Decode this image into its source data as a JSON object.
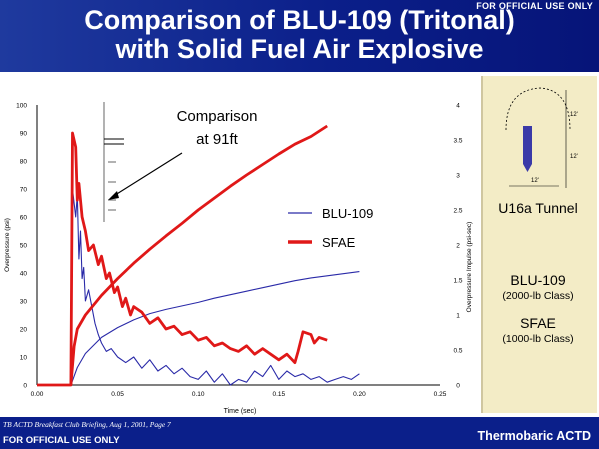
{
  "header": {
    "classification": "FOR OFFICIAL USE ONLY",
    "title_line1": "Comparison of BLU-109 (Tritonal)",
    "title_line2": "with Solid Fuel Air Explosive"
  },
  "footer": {
    "briefing": "TB ACTD Breakfast Club Briefing, Aug 1, 2001, Page 7",
    "classification": "FOR OFFICIAL USE ONLY",
    "brand": "Thermobaric ACTD"
  },
  "side_panel": {
    "tunnel_label": "U16a Tunnel",
    "item1_name": "BLU-109",
    "item1_class": "(2000-lb Class)",
    "item2_name": "SFAE",
    "item2_class": "(1000-lb Class)",
    "diagram_labels": [
      "12'",
      "12'",
      "12'"
    ]
  },
  "colors": {
    "blu109": "#2a2aa8",
    "sfae": "#e01818",
    "background": "#0b1f8a",
    "side_panel": "#f3ecc6"
  },
  "chart_data": {
    "type": "line",
    "annotation": [
      "Comparison",
      "at 91ft"
    ],
    "xlabel": "Time (sec)",
    "ylabel_left": "Overpressure (psi)",
    "ylabel_right": "Overpressure Impulse (psi-sec)",
    "x_ticks": [
      "0.00",
      "0.05",
      "0.10",
      "0.15",
      "0.20",
      "0.25"
    ],
    "y_left_ticks": [
      "0",
      "10",
      "20",
      "30",
      "40",
      "50",
      "60",
      "70",
      "80",
      "90",
      "100"
    ],
    "y_right_ticks": [
      "0",
      "0.5",
      "1",
      "1.5",
      "2",
      "2.5",
      "3",
      "3.5",
      "4"
    ],
    "xlim": [
      0,
      0.25
    ],
    "ylim_left": [
      0,
      100
    ],
    "ylim_right": [
      0,
      4
    ],
    "legend": "center-right",
    "series": [
      {
        "name": "BLU-109",
        "axis": "left",
        "kind": "pressure",
        "x": [
          0.0,
          0.021,
          0.022,
          0.024,
          0.025,
          0.026,
          0.027,
          0.028,
          0.029,
          0.03,
          0.032,
          0.034,
          0.036,
          0.038,
          0.04,
          0.043,
          0.046,
          0.05,
          0.055,
          0.06,
          0.065,
          0.07,
          0.075,
          0.08,
          0.085,
          0.09,
          0.095,
          0.1,
          0.105,
          0.11,
          0.115,
          0.12,
          0.125,
          0.13,
          0.135,
          0.14,
          0.145,
          0.15,
          0.155,
          0.16,
          0.165,
          0.17,
          0.175,
          0.18,
          0.185,
          0.19,
          0.195,
          0.2
        ],
        "y": [
          0,
          0,
          70,
          60,
          68,
          45,
          55,
          38,
          42,
          30,
          34,
          28,
          22,
          18,
          15,
          12,
          13,
          10,
          8,
          10,
          6,
          9,
          5,
          7,
          4,
          6,
          3,
          2,
          5,
          1,
          4,
          0,
          2,
          1,
          5,
          3,
          7,
          2,
          5,
          3,
          4,
          2,
          3,
          1,
          2,
          3,
          2,
          4
        ]
      },
      {
        "name": "BLU-109",
        "axis": "right",
        "kind": "impulse",
        "x": [
          0.021,
          0.025,
          0.03,
          0.04,
          0.05,
          0.06,
          0.07,
          0.08,
          0.09,
          0.1,
          0.11,
          0.12,
          0.13,
          0.14,
          0.15,
          0.16,
          0.17,
          0.18,
          0.19,
          0.2
        ],
        "y": [
          0,
          0.25,
          0.45,
          0.68,
          0.82,
          0.93,
          1.02,
          1.08,
          1.13,
          1.18,
          1.24,
          1.29,
          1.34,
          1.39,
          1.44,
          1.49,
          1.53,
          1.56,
          1.59,
          1.62
        ]
      },
      {
        "name": "SFAE",
        "axis": "left",
        "kind": "pressure",
        "x": [
          0.0,
          0.021,
          0.022,
          0.024,
          0.025,
          0.026,
          0.028,
          0.03,
          0.032,
          0.035,
          0.038,
          0.04,
          0.043,
          0.045,
          0.048,
          0.05,
          0.053,
          0.055,
          0.058,
          0.06,
          0.065,
          0.07,
          0.075,
          0.08,
          0.085,
          0.09,
          0.095,
          0.1,
          0.105,
          0.11,
          0.115,
          0.12,
          0.125,
          0.13,
          0.135,
          0.14,
          0.145,
          0.15,
          0.155,
          0.16,
          0.162,
          0.165,
          0.17,
          0.172,
          0.175,
          0.18
        ],
        "y": [
          0,
          0,
          90,
          85,
          66,
          72,
          60,
          55,
          48,
          50,
          43,
          46,
          38,
          40,
          33,
          35,
          28,
          31,
          25,
          28,
          26,
          22,
          24,
          20,
          21,
          18,
          19,
          16,
          17,
          14,
          15,
          13,
          12,
          14,
          11,
          13,
          11,
          9,
          11,
          8,
          12,
          19,
          18,
          15,
          17,
          16
        ]
      },
      {
        "name": "SFAE",
        "axis": "right",
        "kind": "impulse",
        "x": [
          0.021,
          0.023,
          0.025,
          0.03,
          0.04,
          0.05,
          0.06,
          0.07,
          0.08,
          0.09,
          0.1,
          0.11,
          0.12,
          0.13,
          0.14,
          0.15,
          0.16,
          0.17,
          0.18
        ],
        "y": [
          0,
          0.55,
          0.8,
          1.0,
          1.28,
          1.52,
          1.74,
          1.94,
          2.13,
          2.31,
          2.5,
          2.67,
          2.84,
          3.0,
          3.15,
          3.3,
          3.44,
          3.55,
          3.7
        ]
      }
    ]
  }
}
